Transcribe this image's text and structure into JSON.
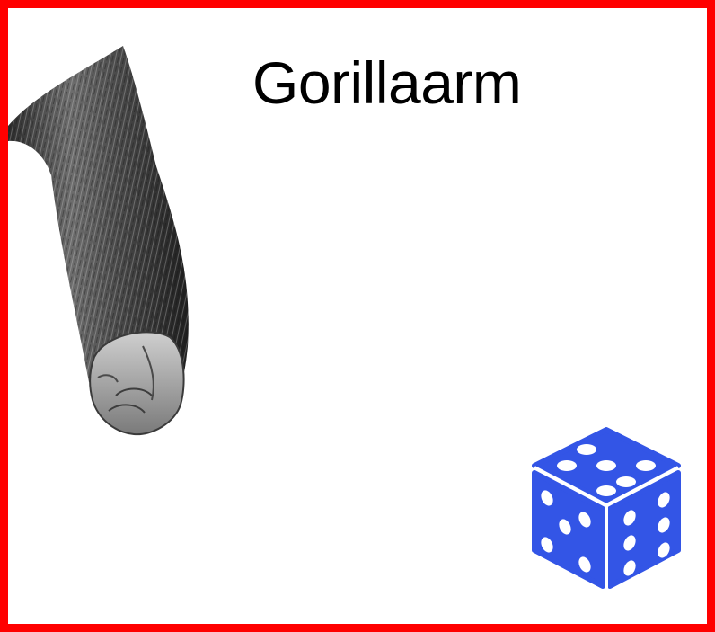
{
  "card": {
    "title": "Gorillaarm",
    "border_color": "#ff0000"
  },
  "image": {
    "icon": "gorilla-arm-image"
  },
  "die": {
    "icon": "dice-icon",
    "color": "#3355e6"
  }
}
